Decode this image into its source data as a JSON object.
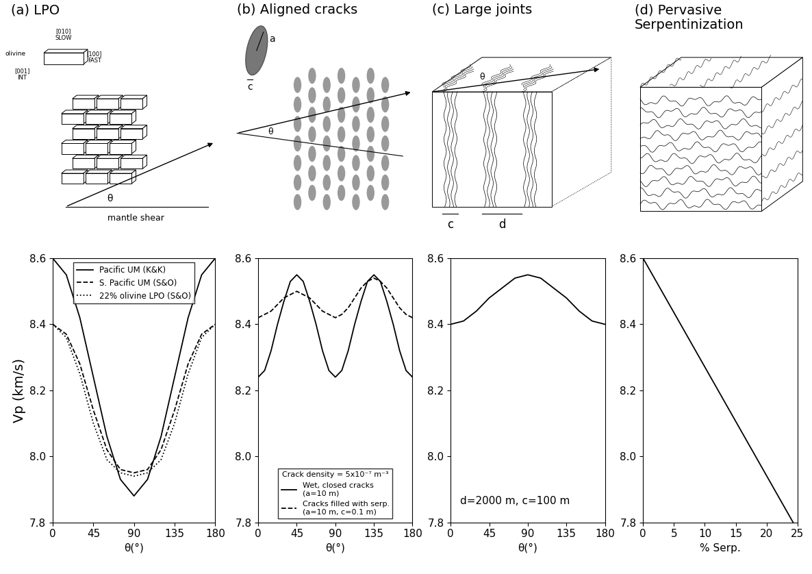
{
  "chart_data": [
    {
      "type": "line",
      "xlabel": "θ(°)",
      "ylabel": "Vp (km/s)",
      "x": [
        0,
        15,
        30,
        45,
        60,
        75,
        90,
        105,
        120,
        135,
        150,
        165,
        180
      ],
      "xlim": [
        0,
        180
      ],
      "xticks": [
        0,
        45,
        90,
        135,
        180
      ],
      "ylim": [
        7.8,
        8.6
      ],
      "yticks": [
        7.8,
        8.0,
        8.2,
        8.4,
        8.6
      ],
      "legend": "upper center",
      "series": [
        {
          "name": "Pacific UM (K&K)",
          "color": "#000000",
          "line_style": "solid",
          "values": [
            8.6,
            8.55,
            8.42,
            8.24,
            8.06,
            7.93,
            7.88,
            7.93,
            8.06,
            8.24,
            8.42,
            8.55,
            8.6
          ]
        },
        {
          "name": "S. Pacific UM (S&O)",
          "color": "#000000",
          "line_style": "dashed",
          "values": [
            8.4,
            8.37,
            8.28,
            8.14,
            8.02,
            7.96,
            7.95,
            7.96,
            8.02,
            8.14,
            8.28,
            8.37,
            8.4
          ]
        },
        {
          "name": "22% olivine LPO (S&O)",
          "color": "#000000",
          "line_style": "dotted",
          "values": [
            8.4,
            8.36,
            8.25,
            8.1,
            7.99,
            7.95,
            7.94,
            7.95,
            7.99,
            8.1,
            8.25,
            8.36,
            8.4
          ]
        }
      ]
    },
    {
      "type": "line",
      "xlabel": "θ(°)",
      "x": [
        0,
        7.5,
        15,
        22.5,
        30,
        37.5,
        45,
        52.5,
        60,
        67.5,
        75,
        82.5,
        90,
        97.5,
        105,
        112.5,
        120,
        127.5,
        135,
        142.5,
        150,
        157.5,
        165,
        172.5,
        180
      ],
      "xlim": [
        0,
        180
      ],
      "xticks": [
        0,
        45,
        90,
        135,
        180
      ],
      "ylim": [
        7.8,
        8.6
      ],
      "yticks": [
        7.8,
        8.0,
        8.2,
        8.4,
        8.6
      ],
      "legend": "lower center",
      "annotations": [
        "Crack density = 5x10⁻⁷ m⁻³"
      ],
      "series": [
        {
          "name": "Wet, closed cracks\n(a=10 m)",
          "color": "#000000",
          "line_style": "solid",
          "values": [
            8.24,
            8.26,
            8.32,
            8.4,
            8.47,
            8.53,
            8.55,
            8.53,
            8.47,
            8.4,
            8.32,
            8.26,
            8.24,
            8.26,
            8.32,
            8.4,
            8.47,
            8.53,
            8.55,
            8.53,
            8.47,
            8.4,
            8.32,
            8.26,
            8.24
          ]
        },
        {
          "name": "Cracks filled with serp.\n(a=10 m, c=0.1 m)",
          "color": "#000000",
          "line_style": "dashed",
          "values": [
            8.42,
            8.43,
            8.44,
            8.46,
            8.48,
            8.49,
            8.5,
            8.49,
            8.48,
            8.46,
            8.44,
            8.43,
            8.42,
            8.43,
            8.45,
            8.48,
            8.51,
            8.53,
            8.54,
            8.53,
            8.51,
            8.48,
            8.45,
            8.43,
            8.42
          ]
        }
      ]
    },
    {
      "type": "line",
      "xlabel": "θ(°)",
      "x": [
        0,
        15,
        30,
        45,
        60,
        75,
        90,
        105,
        120,
        135,
        150,
        165,
        180
      ],
      "xlim": [
        0,
        180
      ],
      "xticks": [
        0,
        45,
        90,
        135,
        180
      ],
      "ylim": [
        7.8,
        8.6
      ],
      "yticks": [
        7.8,
        8.0,
        8.2,
        8.4,
        8.6
      ],
      "annotations": [
        "d=2000 m, c=100 m"
      ],
      "series": [
        {
          "color": "#000000",
          "line_style": "solid",
          "values": [
            8.4,
            8.41,
            8.44,
            8.48,
            8.51,
            8.54,
            8.55,
            8.54,
            8.51,
            8.48,
            8.44,
            8.41,
            8.4
          ]
        }
      ]
    },
    {
      "type": "line",
      "xlabel": "% Serp.",
      "x": [
        0,
        24.3
      ],
      "xlim": [
        0,
        25
      ],
      "xticks": [
        0,
        5,
        10,
        15,
        20,
        25
      ],
      "ylim": [
        7.8,
        8.6
      ],
      "yticks": [
        7.8,
        8.0,
        8.2,
        8.4,
        8.6
      ],
      "series": [
        {
          "color": "#000000",
          "line_style": "solid",
          "values": [
            8.6,
            7.8
          ]
        }
      ]
    }
  ],
  "diagrams": [
    {
      "title": "(a) LPO",
      "labels": [
        "[010]",
        "SLOW",
        "olivine",
        "[100]",
        "FAST",
        "[001]",
        "INT",
        "θ",
        "mantle shear"
      ]
    },
    {
      "title": "(b) Aligned cracks",
      "labels": [
        "a",
        "c",
        "θ"
      ]
    },
    {
      "title": "(c) Large joints",
      "labels": [
        "θ",
        "c",
        "d"
      ]
    },
    {
      "title": "(d) Pervasive\nSerpentinization",
      "labels": []
    }
  ]
}
